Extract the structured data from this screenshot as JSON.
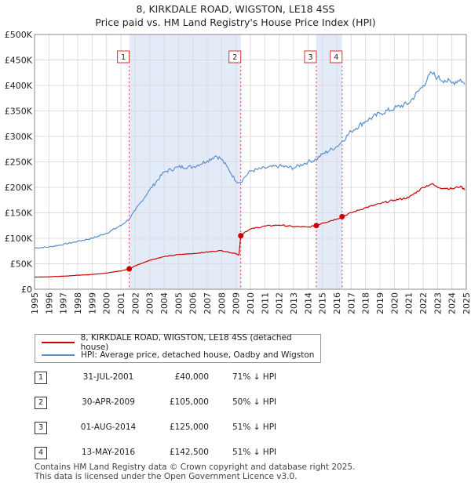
{
  "title_line1": "8, KIRKDALE ROAD, WIGSTON, LE18 4SS",
  "title_line2": "Price paid vs. HM Land Registry's House Price Index (HPI)",
  "legend": {
    "property_label": "8, KIRKDALE ROAD, WIGSTON, LE18 4SS (detached house)",
    "hpi_label": "HPI: Average price, detached house, Oadby and Wigston"
  },
  "colors": {
    "property": "#cc0000",
    "hpi": "#5b8fcf",
    "band": "#dde6f6",
    "marker_line": "#dd4444"
  },
  "sales": [
    {
      "num": "1",
      "date": "31-JUL-2001",
      "price": "£40,000",
      "hpi": "71% ↓ HPI"
    },
    {
      "num": "2",
      "date": "30-APR-2009",
      "price": "£105,000",
      "hpi": "50% ↓ HPI"
    },
    {
      "num": "3",
      "date": "01-AUG-2014",
      "price": "£125,000",
      "hpi": "51% ↓ HPI"
    },
    {
      "num": "4",
      "date": "13-MAY-2016",
      "price": "£142,500",
      "hpi": "51% ↓ HPI"
    }
  ],
  "footer": {
    "line1": "Contains HM Land Registry data © Crown copyright and database right 2025.",
    "line2": "This data is licensed under the Open Government Licence v3.0."
  },
  "chart_data": {
    "type": "line",
    "title": "8, KIRKDALE ROAD, WIGSTON, LE18 4SS",
    "subtitle": "Price paid vs. HM Land Registry's House Price Index (HPI)",
    "xlabel": "",
    "ylabel": "",
    "xlim": [
      1995,
      2025
    ],
    "ylim": [
      0,
      500000
    ],
    "grid": true,
    "legend_position": "below",
    "x_ticks": [
      "1995",
      "1996",
      "1997",
      "1998",
      "1999",
      "2000",
      "2001",
      "2002",
      "2003",
      "2004",
      "2005",
      "2006",
      "2007",
      "2008",
      "2009",
      "2010",
      "2011",
      "2012",
      "2013",
      "2014",
      "2015",
      "2016",
      "2017",
      "2018",
      "2019",
      "2020",
      "2021",
      "2022",
      "2023",
      "2024",
      "2025"
    ],
    "y_ticks": [
      {
        "value": 0,
        "label": "£0"
      },
      {
        "value": 50000,
        "label": "£50K"
      },
      {
        "value": 100000,
        "label": "£100K"
      },
      {
        "value": 150000,
        "label": "£150K"
      },
      {
        "value": 200000,
        "label": "£200K"
      },
      {
        "value": 250000,
        "label": "£250K"
      },
      {
        "value": 300000,
        "label": "£300K"
      },
      {
        "value": 350000,
        "label": "£350K"
      },
      {
        "value": 400000,
        "label": "£400K"
      },
      {
        "value": 450000,
        "label": "£450K"
      },
      {
        "value": 500000,
        "label": "£500K"
      }
    ],
    "shaded_spans": [
      [
        2001.58,
        2009.33
      ],
      [
        2014.58,
        2016.37
      ]
    ],
    "sale_markers": [
      {
        "label": "1",
        "x": 2001.58,
        "y": 40000
      },
      {
        "label": "2",
        "x": 2009.33,
        "y": 105000
      },
      {
        "label": "3",
        "x": 2014.58,
        "y": 125000
      },
      {
        "label": "4",
        "x": 2016.37,
        "y": 142500
      }
    ],
    "series": [
      {
        "name": "8, KIRKDALE ROAD, WIGSTON, LE18 4SS (detached house)",
        "x": [
          1995,
          1996,
          1997,
          1998,
          1999,
          2000,
          2001,
          2001.58,
          2002,
          2003,
          2004,
          2005,
          2006,
          2007,
          2008,
          2008.6,
          2009.0,
          2009.2,
          2009.33,
          2009.6,
          2010,
          2011,
          2012,
          2013,
          2014,
          2014.58,
          2015,
          2016,
          2016.37,
          2017,
          2018,
          2019,
          2020,
          2021,
          2022,
          2022.6,
          2023,
          2024,
          2024.6,
          2024.9
        ],
        "y": [
          24000,
          24500,
          25500,
          27500,
          29000,
          32000,
          36000,
          40000,
          46000,
          57000,
          64000,
          68000,
          70000,
          73000,
          76000,
          72000,
          70000,
          67000,
          105000,
          112000,
          118000,
          124000,
          126000,
          123000,
          122000,
          125000,
          130000,
          138000,
          142500,
          150000,
          160000,
          168000,
          175000,
          180000,
          200000,
          207000,
          200000,
          197000,
          202000,
          195000
        ]
      },
      {
        "name": "HPI: Average price, detached house, Oadby and Wigston",
        "x": [
          1995,
          1996,
          1997,
          1998,
          1999,
          2000,
          2001,
          2001.58,
          2002,
          2003,
          2004,
          2005,
          2006,
          2007,
          2007.6,
          2008,
          2008.5,
          2009.0,
          2009.33,
          2009.6,
          2010,
          2011,
          2012,
          2013,
          2014,
          2014.58,
          2015,
          2016,
          2016.37,
          2017,
          2018,
          2019,
          2020,
          2021,
          2022,
          2022.6,
          2023,
          2023.5,
          2024,
          2024.6,
          2024.9
        ],
        "y": [
          81000,
          83000,
          88000,
          94000,
          100000,
          110000,
          125000,
          138000,
          155000,
          195000,
          230000,
          240000,
          240000,
          252000,
          262000,
          255000,
          235000,
          212000,
          210000,
          220000,
          232000,
          238000,
          242000,
          238000,
          250000,
          255000,
          265000,
          280000,
          290000,
          310000,
          330000,
          345000,
          355000,
          365000,
          400000,
          425000,
          415000,
          410000,
          405000,
          412000,
          402000
        ]
      }
    ]
  }
}
